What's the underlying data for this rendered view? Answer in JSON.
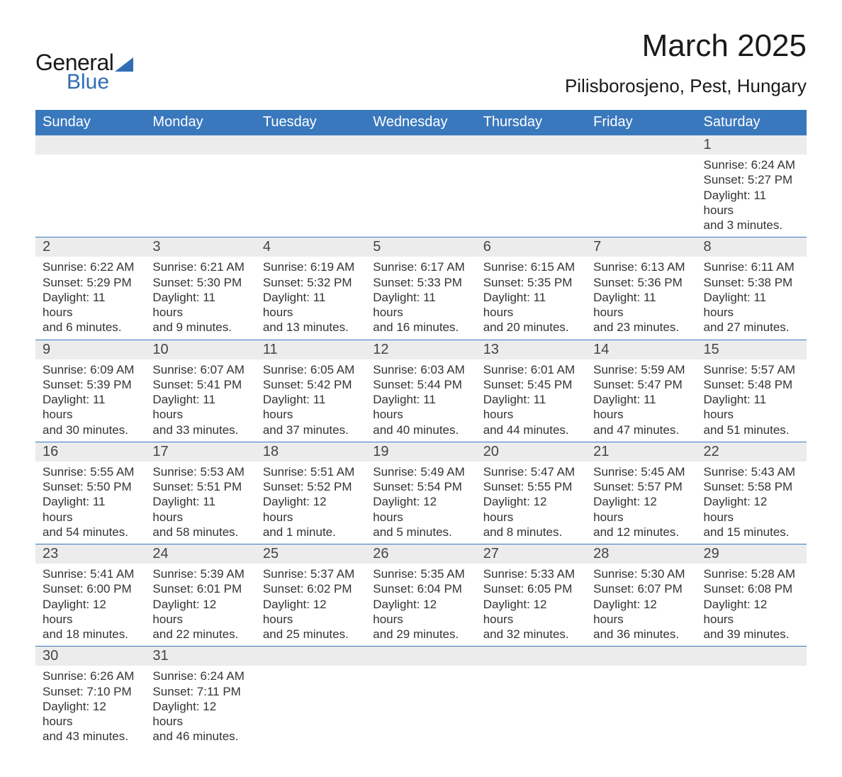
{
  "logo": {
    "word1": "General",
    "word2": "Blue"
  },
  "title": "March 2025",
  "location": "Pilisborosjeno, Pest, Hungary",
  "colors": {
    "header_bg": "#3a78bd",
    "header_text": "#ffffff",
    "daynum_bg": "#ececec",
    "daynum_text": "#444444",
    "body_text": "#333333",
    "rule": "#3a78bd",
    "logo_blue": "#2f6eb3"
  },
  "day_headers": [
    "Sunday",
    "Monday",
    "Tuesday",
    "Wednesday",
    "Thursday",
    "Friday",
    "Saturday"
  ],
  "weeks": [
    [
      null,
      null,
      null,
      null,
      null,
      null,
      {
        "n": "1",
        "sr": "Sunrise: 6:24 AM",
        "ss": "Sunset: 5:27 PM",
        "d1": "Daylight: 11 hours",
        "d2": "and 3 minutes."
      }
    ],
    [
      {
        "n": "2",
        "sr": "Sunrise: 6:22 AM",
        "ss": "Sunset: 5:29 PM",
        "d1": "Daylight: 11 hours",
        "d2": "and 6 minutes."
      },
      {
        "n": "3",
        "sr": "Sunrise: 6:21 AM",
        "ss": "Sunset: 5:30 PM",
        "d1": "Daylight: 11 hours",
        "d2": "and 9 minutes."
      },
      {
        "n": "4",
        "sr": "Sunrise: 6:19 AM",
        "ss": "Sunset: 5:32 PM",
        "d1": "Daylight: 11 hours",
        "d2": "and 13 minutes."
      },
      {
        "n": "5",
        "sr": "Sunrise: 6:17 AM",
        "ss": "Sunset: 5:33 PM",
        "d1": "Daylight: 11 hours",
        "d2": "and 16 minutes."
      },
      {
        "n": "6",
        "sr": "Sunrise: 6:15 AM",
        "ss": "Sunset: 5:35 PM",
        "d1": "Daylight: 11 hours",
        "d2": "and 20 minutes."
      },
      {
        "n": "7",
        "sr": "Sunrise: 6:13 AM",
        "ss": "Sunset: 5:36 PM",
        "d1": "Daylight: 11 hours",
        "d2": "and 23 minutes."
      },
      {
        "n": "8",
        "sr": "Sunrise: 6:11 AM",
        "ss": "Sunset: 5:38 PM",
        "d1": "Daylight: 11 hours",
        "d2": "and 27 minutes."
      }
    ],
    [
      {
        "n": "9",
        "sr": "Sunrise: 6:09 AM",
        "ss": "Sunset: 5:39 PM",
        "d1": "Daylight: 11 hours",
        "d2": "and 30 minutes."
      },
      {
        "n": "10",
        "sr": "Sunrise: 6:07 AM",
        "ss": "Sunset: 5:41 PM",
        "d1": "Daylight: 11 hours",
        "d2": "and 33 minutes."
      },
      {
        "n": "11",
        "sr": "Sunrise: 6:05 AM",
        "ss": "Sunset: 5:42 PM",
        "d1": "Daylight: 11 hours",
        "d2": "and 37 minutes."
      },
      {
        "n": "12",
        "sr": "Sunrise: 6:03 AM",
        "ss": "Sunset: 5:44 PM",
        "d1": "Daylight: 11 hours",
        "d2": "and 40 minutes."
      },
      {
        "n": "13",
        "sr": "Sunrise: 6:01 AM",
        "ss": "Sunset: 5:45 PM",
        "d1": "Daylight: 11 hours",
        "d2": "and 44 minutes."
      },
      {
        "n": "14",
        "sr": "Sunrise: 5:59 AM",
        "ss": "Sunset: 5:47 PM",
        "d1": "Daylight: 11 hours",
        "d2": "and 47 minutes."
      },
      {
        "n": "15",
        "sr": "Sunrise: 5:57 AM",
        "ss": "Sunset: 5:48 PM",
        "d1": "Daylight: 11 hours",
        "d2": "and 51 minutes."
      }
    ],
    [
      {
        "n": "16",
        "sr": "Sunrise: 5:55 AM",
        "ss": "Sunset: 5:50 PM",
        "d1": "Daylight: 11 hours",
        "d2": "and 54 minutes."
      },
      {
        "n": "17",
        "sr": "Sunrise: 5:53 AM",
        "ss": "Sunset: 5:51 PM",
        "d1": "Daylight: 11 hours",
        "d2": "and 58 minutes."
      },
      {
        "n": "18",
        "sr": "Sunrise: 5:51 AM",
        "ss": "Sunset: 5:52 PM",
        "d1": "Daylight: 12 hours",
        "d2": "and 1 minute."
      },
      {
        "n": "19",
        "sr": "Sunrise: 5:49 AM",
        "ss": "Sunset: 5:54 PM",
        "d1": "Daylight: 12 hours",
        "d2": "and 5 minutes."
      },
      {
        "n": "20",
        "sr": "Sunrise: 5:47 AM",
        "ss": "Sunset: 5:55 PM",
        "d1": "Daylight: 12 hours",
        "d2": "and 8 minutes."
      },
      {
        "n": "21",
        "sr": "Sunrise: 5:45 AM",
        "ss": "Sunset: 5:57 PM",
        "d1": "Daylight: 12 hours",
        "d2": "and 12 minutes."
      },
      {
        "n": "22",
        "sr": "Sunrise: 5:43 AM",
        "ss": "Sunset: 5:58 PM",
        "d1": "Daylight: 12 hours",
        "d2": "and 15 minutes."
      }
    ],
    [
      {
        "n": "23",
        "sr": "Sunrise: 5:41 AM",
        "ss": "Sunset: 6:00 PM",
        "d1": "Daylight: 12 hours",
        "d2": "and 18 minutes."
      },
      {
        "n": "24",
        "sr": "Sunrise: 5:39 AM",
        "ss": "Sunset: 6:01 PM",
        "d1": "Daylight: 12 hours",
        "d2": "and 22 minutes."
      },
      {
        "n": "25",
        "sr": "Sunrise: 5:37 AM",
        "ss": "Sunset: 6:02 PM",
        "d1": "Daylight: 12 hours",
        "d2": "and 25 minutes."
      },
      {
        "n": "26",
        "sr": "Sunrise: 5:35 AM",
        "ss": "Sunset: 6:04 PM",
        "d1": "Daylight: 12 hours",
        "d2": "and 29 minutes."
      },
      {
        "n": "27",
        "sr": "Sunrise: 5:33 AM",
        "ss": "Sunset: 6:05 PM",
        "d1": "Daylight: 12 hours",
        "d2": "and 32 minutes."
      },
      {
        "n": "28",
        "sr": "Sunrise: 5:30 AM",
        "ss": "Sunset: 6:07 PM",
        "d1": "Daylight: 12 hours",
        "d2": "and 36 minutes."
      },
      {
        "n": "29",
        "sr": "Sunrise: 5:28 AM",
        "ss": "Sunset: 6:08 PM",
        "d1": "Daylight: 12 hours",
        "d2": "and 39 minutes."
      }
    ],
    [
      {
        "n": "30",
        "sr": "Sunrise: 6:26 AM",
        "ss": "Sunset: 7:10 PM",
        "d1": "Daylight: 12 hours",
        "d2": "and 43 minutes."
      },
      {
        "n": "31",
        "sr": "Sunrise: 6:24 AM",
        "ss": "Sunset: 7:11 PM",
        "d1": "Daylight: 12 hours",
        "d2": "and 46 minutes."
      },
      null,
      null,
      null,
      null,
      null
    ]
  ]
}
